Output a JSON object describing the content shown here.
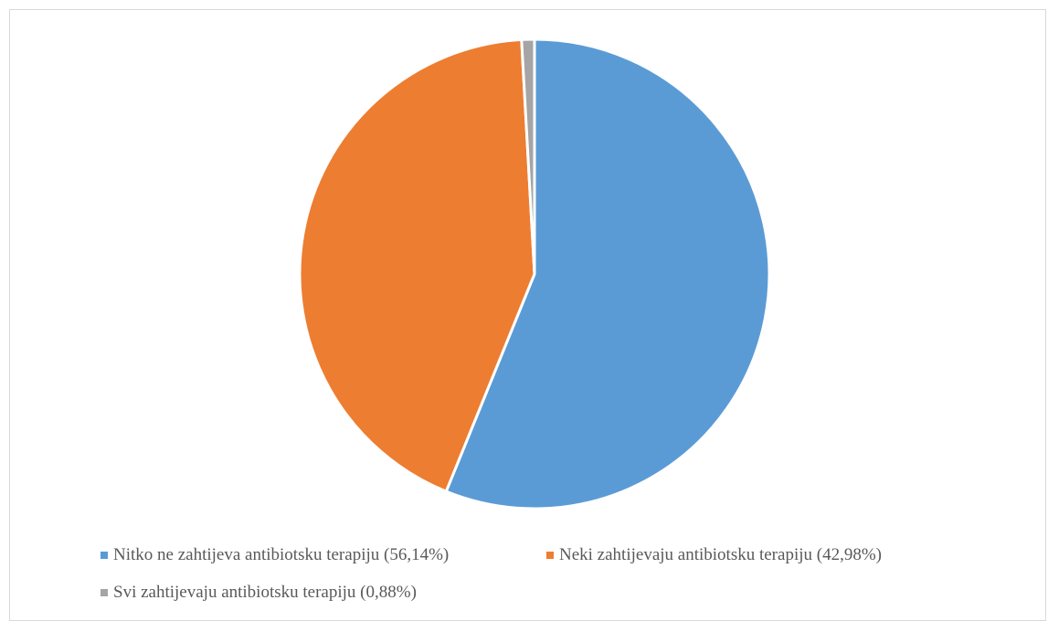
{
  "chart_data": {
    "type": "pie",
    "title": "",
    "slices": [
      {
        "label": "Nitko ne zahtijeva antibiotsku terapiju (56,14%)",
        "value": 56.14,
        "color": "#5B9BD5"
      },
      {
        "label": "Neki zahtijevaju antibiotsku terapiju (42,98%)",
        "value": 42.98,
        "color": "#ED7D31"
      },
      {
        "label": "Svi zahtijevaju antibiotsku terapiju (0,88%)",
        "value": 0.88,
        "color": "#A5A5A5"
      }
    ],
    "start_angle": "12 o'clock",
    "direction": "clockwise",
    "legend_position": "bottom"
  }
}
